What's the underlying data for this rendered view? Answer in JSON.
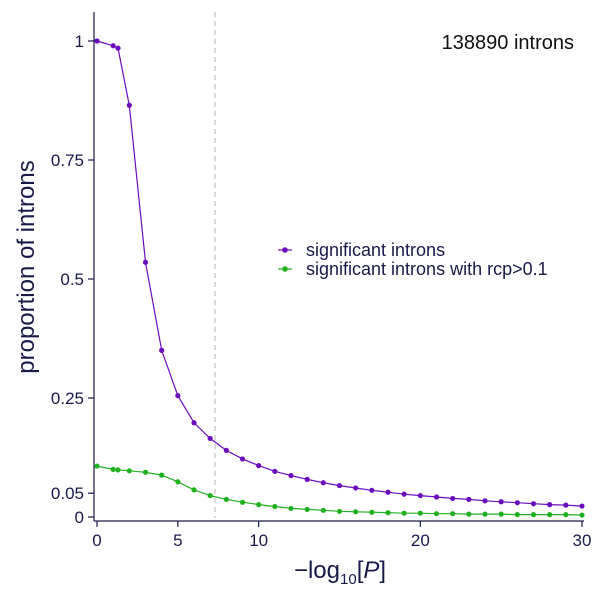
{
  "chart_data": {
    "type": "line",
    "title": "",
    "annotation": "138890 introns",
    "ylabel": "proportion of introns",
    "xlabel": {
      "prefix": "−log",
      "subscript": "10",
      "bracket_open": "[",
      "variable": "P",
      "bracket_close": "]"
    },
    "xlim": [
      0,
      30
    ],
    "ylim": [
      0,
      1.05
    ],
    "x_ticks": [
      0,
      5,
      10,
      20,
      30
    ],
    "x_tick_labels": [
      "0",
      "5",
      "10",
      "20",
      "30"
    ],
    "y_ticks": [
      0,
      0.05,
      0.25,
      0.5,
      0.75,
      1
    ],
    "y_tick_labels": [
      "0",
      "0.05",
      "0.25",
      "0.5",
      "0.75",
      "1"
    ],
    "reference_line_x": 7.3,
    "grid": false,
    "legend_position": "right",
    "series": [
      {
        "name": "significant introns",
        "color": "#6a0dbd",
        "x": [
          0,
          1,
          1.3,
          2,
          3,
          4,
          5,
          6,
          7,
          8,
          9,
          10,
          11,
          12,
          13,
          14,
          15,
          16,
          17,
          18,
          19,
          20,
          21,
          22,
          23,
          24,
          25,
          26,
          27,
          28,
          29,
          30
        ],
        "y": [
          1.0,
          0.99,
          0.985,
          0.865,
          0.535,
          0.35,
          0.255,
          0.198,
          0.165,
          0.14,
          0.122,
          0.108,
          0.096,
          0.087,
          0.079,
          0.072,
          0.066,
          0.061,
          0.056,
          0.052,
          0.048,
          0.045,
          0.042,
          0.039,
          0.037,
          0.034,
          0.032,
          0.03,
          0.028,
          0.026,
          0.025,
          0.023
        ]
      },
      {
        "name": "significant introns with rcp>0.1",
        "color": "#22b022",
        "x": [
          0,
          1,
          1.3,
          2,
          3,
          4,
          5,
          6,
          7,
          8,
          9,
          10,
          11,
          12,
          13,
          14,
          15,
          16,
          17,
          18,
          19,
          20,
          21,
          22,
          23,
          24,
          25,
          26,
          27,
          28,
          29,
          30
        ],
        "y": [
          0.107,
          0.1,
          0.099,
          0.097,
          0.094,
          0.088,
          0.074,
          0.057,
          0.045,
          0.037,
          0.031,
          0.026,
          0.022,
          0.018,
          0.016,
          0.014,
          0.012,
          0.011,
          0.01,
          0.009,
          0.008,
          0.008,
          0.007,
          0.007,
          0.006,
          0.006,
          0.006,
          0.005,
          0.005,
          0.005,
          0.005,
          0.004
        ]
      }
    ]
  }
}
